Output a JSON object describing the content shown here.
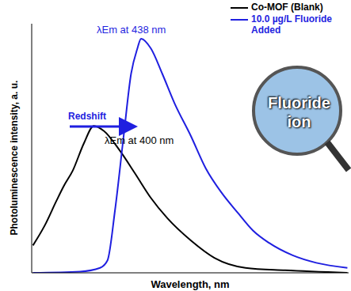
{
  "chart_data": {
    "type": "line",
    "x_label": "Wavelength, nm",
    "y_label": "Photoluminescence intensity, a. u.",
    "xlim": [
      350,
      605
    ],
    "ylim": [
      0,
      100
    ],
    "tick_labels": false,
    "legend": "upper right",
    "series": [
      {
        "name": "Co-MOF (Blank)",
        "color": "#000000",
        "x": [
          351,
          360.5,
          370,
          376,
          383,
          392,
          400,
          408,
          421,
          433,
          446,
          459,
          478,
          497,
          522,
          554,
          604
        ],
        "values": [
          11,
          19,
          29,
          35,
          41,
          52,
          59,
          57,
          49,
          40,
          30,
          22,
          13,
          6,
          2,
          1,
          0
        ]
      },
      {
        "name": "10.0 µg/L Fluoride Added",
        "color": "#1f1fe0",
        "x": [
          351,
          389,
          405,
          411,
          417,
          424,
          430,
          435,
          438,
          446,
          455,
          465,
          478,
          490,
          503,
          516,
          528,
          541,
          560,
          579,
          604
        ],
        "values": [
          0,
          0.5,
          2,
          5,
          25,
          55,
          80,
          90,
          94,
          90,
          80,
          68,
          55,
          42,
          32,
          24,
          17,
          12,
          7,
          4,
          2
        ]
      }
    ],
    "annotations": [
      "λEm at 438 nm",
      "λEm at 400 nm",
      "Redshift",
      "Fluoride ion"
    ]
  }
}
